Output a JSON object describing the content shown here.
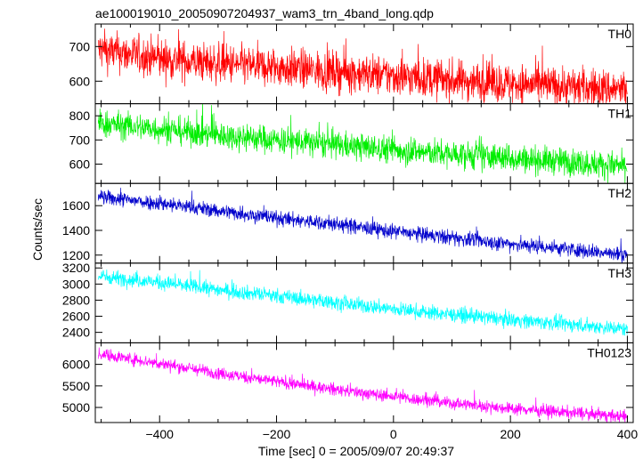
{
  "chart_data": {
    "type": "line",
    "title": "ae100019010_20050907204937_wam3_trn_4band_long.qdp",
    "xlabel": "Time [sec] 0 = 2005/09/07 20:49:37",
    "ylabel": "Counts/sec",
    "xlim": [
      -510,
      410
    ],
    "xticks": [
      -400,
      -200,
      0,
      200,
      400
    ],
    "grid": false,
    "panels": [
      {
        "name": "TH0",
        "color": "#ff0000",
        "ylim": [
          535,
          765
        ],
        "yticks": [
          600,
          700
        ],
        "x": [
          -505,
          -400,
          -300,
          -200,
          -100,
          0,
          100,
          200,
          300,
          400
        ],
        "y": [
          690,
          665,
          650,
          640,
          628,
          615,
          603,
          593,
          585,
          575
        ],
        "noise": 28
      },
      {
        "name": "TH1",
        "color": "#00ee00",
        "ylim": [
          520,
          850
        ],
        "yticks": [
          600,
          700,
          800
        ],
        "x": [
          -505,
          -400,
          -300,
          -200,
          -100,
          0,
          100,
          200,
          300,
          400
        ],
        "y": [
          770,
          745,
          720,
          700,
          680,
          660,
          640,
          625,
          610,
          590
        ],
        "noise": 28
      },
      {
        "name": "TH2",
        "color": "#0000cc",
        "ylim": [
          1135,
          1780
        ],
        "yticks": [
          1200,
          1400,
          1600
        ],
        "x": [
          -505,
          -400,
          -300,
          -200,
          -100,
          0,
          100,
          200,
          300,
          400
        ],
        "y": [
          1670,
          1620,
          1560,
          1500,
          1450,
          1390,
          1340,
          1290,
          1250,
          1200
        ],
        "noise": 30
      },
      {
        "name": "TH3",
        "color": "#00ffff",
        "ylim": [
          2270,
          3260
        ],
        "yticks": [
          2400,
          2600,
          2800,
          3000,
          3200
        ],
        "x": [
          -505,
          -400,
          -300,
          -200,
          -100,
          0,
          100,
          200,
          300,
          400
        ],
        "y": [
          3100,
          3020,
          2930,
          2850,
          2770,
          2690,
          2620,
          2560,
          2500,
          2440
        ],
        "noise": 45
      },
      {
        "name": "TH0123",
        "color": "#ff00ff",
        "ylim": [
          4650,
          6500
        ],
        "yticks": [
          5000,
          5500,
          6000
        ],
        "x": [
          -505,
          -400,
          -300,
          -200,
          -100,
          0,
          100,
          200,
          300,
          400
        ],
        "y": [
          6250,
          6020,
          5800,
          5600,
          5420,
          5250,
          5100,
          4980,
          4880,
          4780
        ],
        "noise": 70
      }
    ]
  }
}
